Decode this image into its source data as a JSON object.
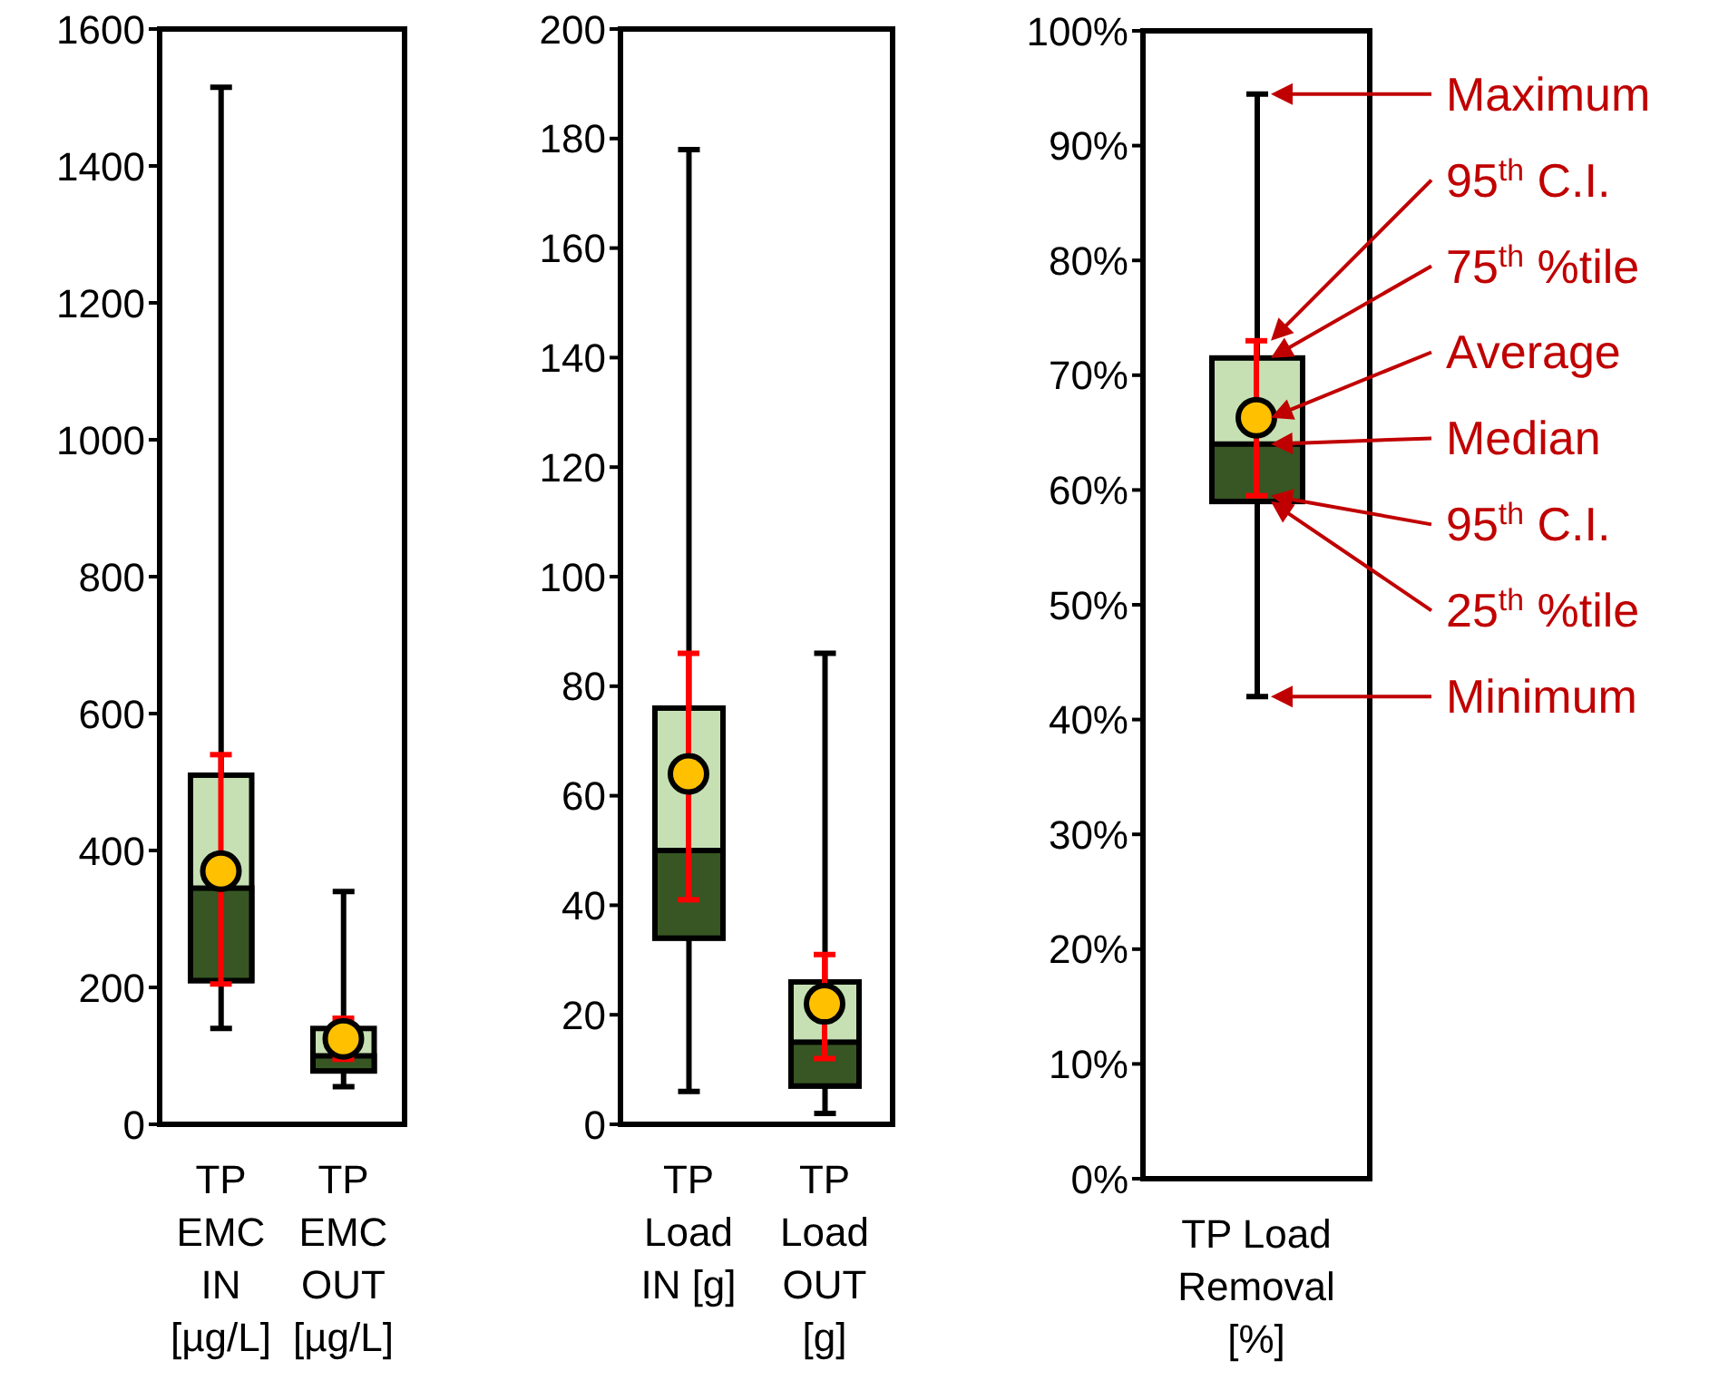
{
  "chart_data": [
    {
      "type": "box",
      "categories": [
        "TP EMC IN [µg/L]",
        "TP EMC OUT [µg/L]"
      ],
      "ylim": [
        0,
        1600
      ],
      "yticks": [
        0,
        200,
        400,
        600,
        800,
        1000,
        1200,
        1400,
        1600
      ],
      "series": [
        {
          "type": "box",
          "color": "#c6e0b4",
          "colors": [
            "#375623",
            "#375623"
          ],
          "boxes": [
            {
              "low": 140,
              "q1": 210,
              "median": 345,
              "q3": 510,
              "high": 1515
            },
            {
              "low": 55,
              "q1": 78,
              "median": 100,
              "q3": 140,
              "high": 340
            }
          ]
        },
        {
          "type": "scatter",
          "color": "#ffc000",
          "x": [
            "TP EMC IN [µg/L]",
            "TP EMC OUT [µg/L]"
          ],
          "values": [
            370,
            125
          ],
          "errors": [
            [
              205,
              540
            ],
            [
              95,
              155
            ]
          ]
        }
      ]
    },
    {
      "type": "box",
      "categories": [
        "TP Load IN [g]",
        "TP Load OUT [g]"
      ],
      "ylim": [
        0,
        200
      ],
      "yticks": [
        0,
        20,
        40,
        60,
        80,
        100,
        120,
        140,
        160,
        180,
        200
      ],
      "series": [
        {
          "type": "box",
          "color": "#c6e0b4",
          "colors": [
            "#375623",
            "#375623"
          ],
          "boxes": [
            {
              "low": 6,
              "q1": 34,
              "median": 50,
              "q3": 76,
              "high": 178
            },
            {
              "low": 2,
              "q1": 7,
              "median": 15,
              "q3": 26,
              "high": 86
            }
          ]
        },
        {
          "type": "scatter",
          "color": "#ffc000",
          "x": [
            "TP Load IN [g]",
            "TP Load OUT [g]"
          ],
          "values": [
            64,
            22
          ],
          "errors": [
            [
              41,
              86
            ],
            [
              12,
              31
            ]
          ]
        }
      ]
    },
    {
      "type": "box",
      "categories": [
        "TP Load Removal [%]"
      ],
      "ylim": [
        0,
        100
      ],
      "yticks": [
        {
          "value": 0,
          "label": "0%"
        },
        {
          "value": 10,
          "label": "10%"
        },
        {
          "value": 20,
          "label": "20%"
        },
        {
          "value": 30,
          "label": "30%"
        },
        {
          "value": 40,
          "label": "40%"
        },
        {
          "value": 50,
          "label": "50%"
        },
        {
          "value": 60,
          "label": "60%"
        },
        {
          "value": 70,
          "label": "70%"
        },
        {
          "value": 80,
          "label": "80%"
        },
        {
          "value": 90,
          "label": "90%"
        },
        {
          "value": 100,
          "label": "100%"
        }
      ],
      "series": [
        {
          "type": "box",
          "color": "#c6e0b4",
          "colors": [
            "#375623"
          ],
          "boxes": [
            {
              "low": 42,
              "q1": 59,
              "median": 64,
              "q3": 71.5,
              "high": 94.5
            }
          ]
        },
        {
          "type": "scatter",
          "color": "#ffc000",
          "x": [
            "TP Load Removal [%]"
          ],
          "values": [
            66.3
          ],
          "errors": [
            [
              59.5,
              73
            ]
          ]
        }
      ],
      "annotations": [
        "Maximum",
        "95$^{th}$ C.I.",
        "75$^{th}$ %tile",
        "Average",
        "Median",
        "95$^{th}$ C.I.",
        "25$^{th}$ %tile",
        "Minimum"
      ]
    }
  ]
}
